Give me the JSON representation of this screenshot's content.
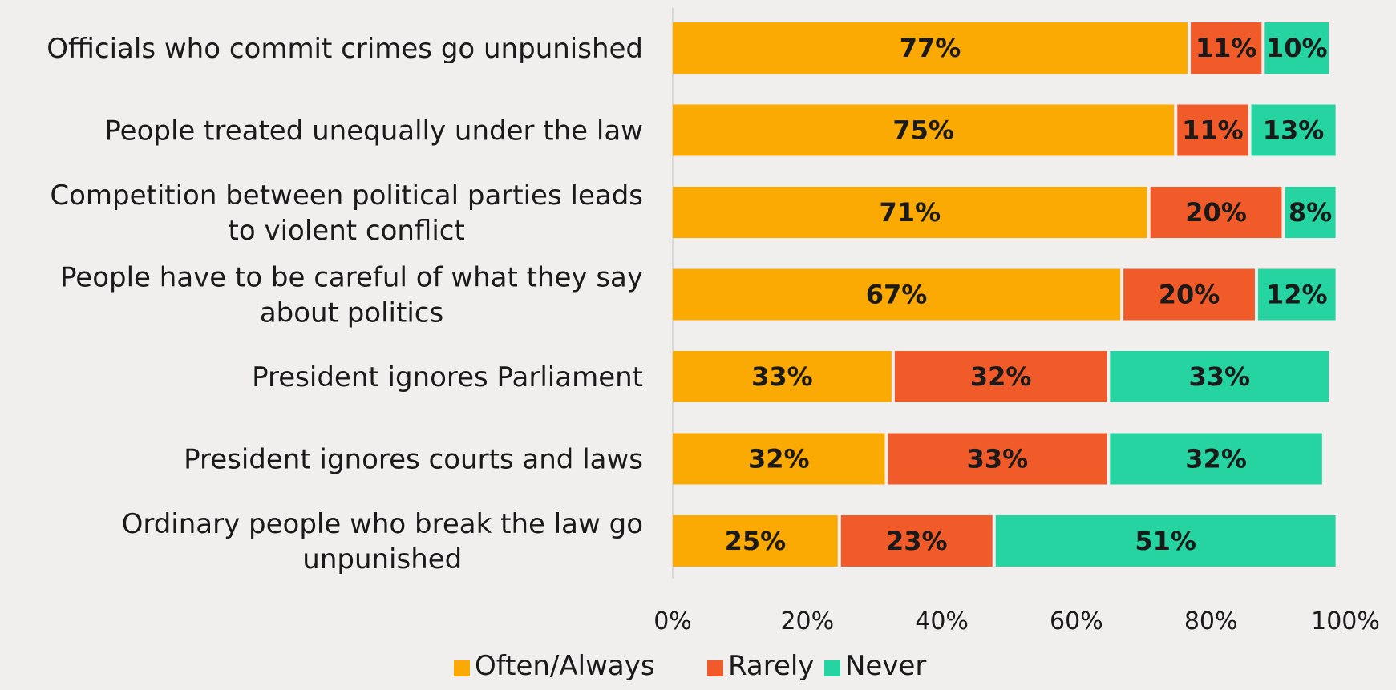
{
  "chart_data": {
    "type": "bar",
    "orientation": "horizontal",
    "stacked": true,
    "categories": [
      "Officials who commit crimes go unpunished",
      "People treated unequally under the law",
      "Competition between political parties leads to violent conflict",
      "People have to be careful of what they say about politics",
      "President ignores Parliament",
      "President ignores courts and laws",
      "Ordinary people who break the law go unpunished"
    ],
    "category_lines": [
      [
        "Officials who commit crimes go unpunished"
      ],
      [
        "People treated unequally under the law"
      ],
      [
        "Competition between political parties leads",
        "to violent conflict"
      ],
      [
        "People have to be careful of what they say",
        "about politics"
      ],
      [
        "President ignores Parliament"
      ],
      [
        "President ignores courts and laws"
      ],
      [
        "Ordinary people who break the law go",
        "unpunished"
      ]
    ],
    "series": [
      {
        "name": "Often/Always",
        "color": "#fbaa03",
        "values": [
          77,
          75,
          71,
          67,
          33,
          32,
          25
        ]
      },
      {
        "name": "Rarely",
        "color": "#f15a29",
        "values": [
          11,
          11,
          20,
          20,
          32,
          33,
          23
        ]
      },
      {
        "name": "Never",
        "color": "#26d4a2",
        "values": [
          10,
          13,
          8,
          12,
          33,
          32,
          51
        ]
      }
    ],
    "data_labels": [
      [
        "77%",
        "11%",
        "10%"
      ],
      [
        "75%",
        "11%",
        "13%"
      ],
      [
        "71%",
        "20%",
        "8%"
      ],
      [
        "67%",
        "20%",
        "12%"
      ],
      [
        "33%",
        "32%",
        "33%"
      ],
      [
        "32%",
        "33%",
        "32%"
      ],
      [
        "25%",
        "23%",
        "51%"
      ]
    ],
    "xlim": [
      0,
      100
    ],
    "x_ticks": [
      "0%",
      "20%",
      "40%",
      "60%",
      "80%",
      "100%"
    ],
    "legend_position": "bottom",
    "grid": false,
    "title": "",
    "xlabel": "",
    "ylabel": ""
  }
}
